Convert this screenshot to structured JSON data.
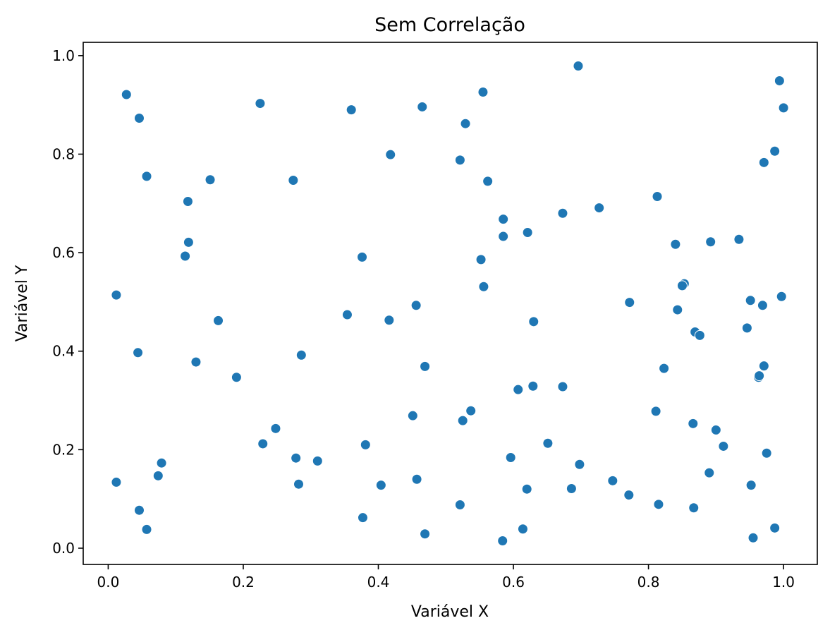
{
  "chart_data": {
    "type": "scatter",
    "title": "Sem Correlação",
    "xlabel": "Variável X",
    "ylabel": "Variável Y",
    "xlim": [
      -0.037,
      1.05
    ],
    "ylim": [
      -0.033,
      1.027
    ],
    "xticks": [
      0.0,
      0.2,
      0.4,
      0.6,
      0.8,
      1.0
    ],
    "xtick_labels": [
      "0.0",
      "0.2",
      "0.4",
      "0.6",
      "0.8",
      "1.0"
    ],
    "yticks": [
      0.0,
      0.2,
      0.4,
      0.6,
      0.8,
      1.0
    ],
    "ytick_labels": [
      "0.0",
      "0.2",
      "0.4",
      "0.6",
      "0.8",
      "1.0"
    ],
    "grid": false,
    "color": "#1f77b4",
    "points": [
      [
        0.027,
        0.921
      ],
      [
        0.046,
        0.873
      ],
      [
        0.057,
        0.755
      ],
      [
        0.012,
        0.514
      ],
      [
        0.044,
        0.397
      ],
      [
        0.012,
        0.134
      ],
      [
        0.046,
        0.077
      ],
      [
        0.057,
        0.038
      ],
      [
        0.074,
        0.147
      ],
      [
        0.079,
        0.173
      ],
      [
        0.118,
        0.704
      ],
      [
        0.119,
        0.621
      ],
      [
        0.114,
        0.593
      ],
      [
        0.151,
        0.748
      ],
      [
        0.163,
        0.462
      ],
      [
        0.13,
        0.378
      ],
      [
        0.19,
        0.347
      ],
      [
        0.225,
        0.903
      ],
      [
        0.274,
        0.747
      ],
      [
        0.286,
        0.392
      ],
      [
        0.248,
        0.243
      ],
      [
        0.229,
        0.212
      ],
      [
        0.278,
        0.183
      ],
      [
        0.282,
        0.13
      ],
      [
        0.31,
        0.177
      ],
      [
        0.36,
        0.89
      ],
      [
        0.376,
        0.591
      ],
      [
        0.354,
        0.474
      ],
      [
        0.418,
        0.799
      ],
      [
        0.416,
        0.463
      ],
      [
        0.381,
        0.21
      ],
      [
        0.404,
        0.128
      ],
      [
        0.377,
        0.062
      ],
      [
        0.465,
        0.896
      ],
      [
        0.456,
        0.493
      ],
      [
        0.469,
        0.369
      ],
      [
        0.451,
        0.269
      ],
      [
        0.457,
        0.14
      ],
      [
        0.469,
        0.029
      ],
      [
        0.555,
        0.926
      ],
      [
        0.529,
        0.862
      ],
      [
        0.521,
        0.788
      ],
      [
        0.562,
        0.745
      ],
      [
        0.552,
        0.586
      ],
      [
        0.556,
        0.531
      ],
      [
        0.537,
        0.279
      ],
      [
        0.525,
        0.259
      ],
      [
        0.521,
        0.088
      ],
      [
        0.585,
        0.668
      ],
      [
        0.585,
        0.633
      ],
      [
        0.621,
        0.641
      ],
      [
        0.63,
        0.46
      ],
      [
        0.607,
        0.322
      ],
      [
        0.629,
        0.329
      ],
      [
        0.596,
        0.184
      ],
      [
        0.62,
        0.12
      ],
      [
        0.614,
        0.039
      ],
      [
        0.584,
        0.015
      ],
      [
        0.696,
        0.979
      ],
      [
        0.673,
        0.68
      ],
      [
        0.727,
        0.691
      ],
      [
        0.673,
        0.328
      ],
      [
        0.651,
        0.213
      ],
      [
        0.698,
        0.17
      ],
      [
        0.686,
        0.121
      ],
      [
        0.747,
        0.137
      ],
      [
        0.771,
        0.108
      ],
      [
        0.813,
        0.714
      ],
      [
        0.772,
        0.499
      ],
      [
        0.84,
        0.617
      ],
      [
        0.853,
        0.537
      ],
      [
        0.85,
        0.533
      ],
      [
        0.843,
        0.484
      ],
      [
        0.869,
        0.439
      ],
      [
        0.876,
        0.432
      ],
      [
        0.823,
        0.365
      ],
      [
        0.811,
        0.278
      ],
      [
        0.866,
        0.253
      ],
      [
        0.815,
        0.089
      ],
      [
        0.867,
        0.082
      ],
      [
        0.892,
        0.622
      ],
      [
        0.934,
        0.627
      ],
      [
        0.9,
        0.24
      ],
      [
        0.911,
        0.207
      ],
      [
        0.89,
        0.153
      ],
      [
        0.994,
        0.949
      ],
      [
        1.0,
        0.894
      ],
      [
        0.987,
        0.806
      ],
      [
        0.971,
        0.783
      ],
      [
        0.951,
        0.503
      ],
      [
        0.969,
        0.493
      ],
      [
        0.997,
        0.511
      ],
      [
        0.946,
        0.447
      ],
      [
        0.971,
        0.37
      ],
      [
        0.963,
        0.347
      ],
      [
        0.964,
        0.35
      ],
      [
        0.975,
        0.193
      ],
      [
        0.952,
        0.128
      ],
      [
        0.987,
        0.041
      ],
      [
        0.955,
        0.021
      ]
    ]
  }
}
